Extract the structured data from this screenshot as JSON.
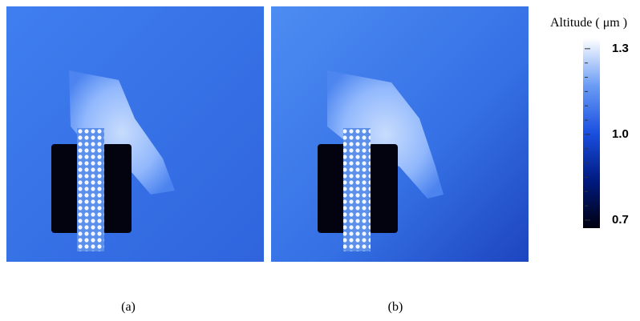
{
  "figure": {
    "panels": [
      {
        "label": "(a)"
      },
      {
        "label": "(b)"
      }
    ],
    "colorbar": {
      "title": "Altitude ( μm )",
      "ylim": [
        0.672,
        1.336
      ],
      "yticks": [
        0.7,
        {
          "value": 1.0,
          "label": "1.0"
        },
        1.3
      ],
      "minor_ticks": [
        0.75,
        0.8,
        0.85,
        0.9,
        0.95,
        1.05,
        1.1,
        1.15,
        1.2,
        1.25
      ]
    }
  }
}
